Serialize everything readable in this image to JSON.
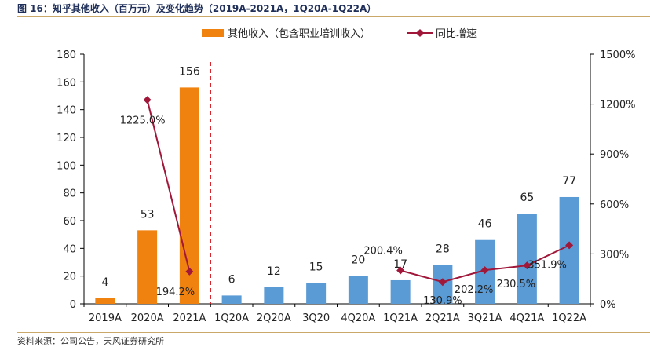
{
  "header": {
    "title": "图 16：知乎其他收入（百万元）及变化趋势（2019A-2021A，1Q20A-1Q22A）"
  },
  "footer": {
    "source": "资料来源：公司公告，天风证券研究所"
  },
  "chart_data": {
    "type": "bar+line",
    "legend": [
      "其他收入（包含职业培训收入）",
      "同比增速"
    ],
    "legend_position": "top-center",
    "categories": [
      "2019A",
      "2020A",
      "2021A",
      "1Q20A",
      "2Q20A",
      "3Q20",
      "4Q20A",
      "1Q21A",
      "2Q21A",
      "3Q21A",
      "4Q21A",
      "1Q22A"
    ],
    "bar_series": {
      "name": "其他收入（包含职业培训收入）",
      "values": [
        4,
        53,
        156,
        6,
        12,
        15,
        20,
        17,
        28,
        46,
        65,
        77
      ],
      "value_labels": [
        "4",
        "53",
        "156",
        "6",
        "12",
        "15",
        "20",
        "17",
        "28",
        "46",
        "65",
        "77"
      ],
      "annual_color": "#f0820f",
      "quarterly_color": "#5b9bd5"
    },
    "line_series": {
      "name": "同比增速",
      "values": [
        null,
        1225.0,
        194.2,
        null,
        null,
        null,
        null,
        200.4,
        130.9,
        202.2,
        230.5,
        351.9
      ],
      "value_labels": [
        "",
        "1225.0%",
        "194.2%",
        "",
        "",
        "",
        "",
        "200.4%",
        "130.9%",
        "202.2%",
        "230.5%",
        "351.9%"
      ],
      "color": "#a0173a"
    },
    "y_left": {
      "min": 0,
      "max": 180,
      "ticks": [
        0,
        20,
        40,
        60,
        80,
        100,
        120,
        140,
        160,
        180
      ]
    },
    "y_right": {
      "min": 0,
      "max": 1500,
      "ticks": [
        "0%",
        "300%",
        "600%",
        "900%",
        "1200%",
        "1500%"
      ]
    },
    "divider": {
      "color": "#d9262c",
      "between": [
        "2021A",
        "1Q20A"
      ]
    }
  }
}
